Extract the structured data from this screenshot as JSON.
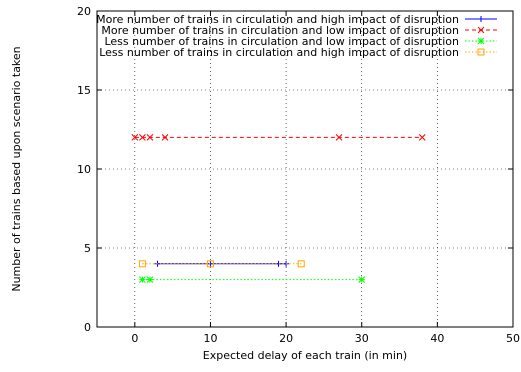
{
  "chart_data": {
    "type": "line",
    "title": "",
    "xlabel": "Expected delay of each train (in min)",
    "ylabel": "Number of trains based upon scenario taken",
    "xlim": [
      -5,
      50
    ],
    "ylim": [
      0,
      20
    ],
    "xticks": [
      0,
      10,
      20,
      30,
      40,
      50
    ],
    "yticks": [
      0,
      5,
      10,
      15,
      20
    ],
    "grid": true,
    "legend": "top-right",
    "series": [
      {
        "name": "More number of trains in circulation and high impact of disruption",
        "color": "#0000ff",
        "line_style": "solid",
        "marker": "plus",
        "points": [
          [
            3,
            4
          ],
          [
            10,
            4
          ],
          [
            19,
            4
          ],
          [
            20,
            4
          ]
        ]
      },
      {
        "name": "More number of trains in circulation and low impact of disruption",
        "color": "#ff0000",
        "line_style": "dashed",
        "marker": "cross",
        "points": [
          [
            0,
            12
          ],
          [
            1,
            12
          ],
          [
            2,
            12
          ],
          [
            4,
            12
          ],
          [
            27,
            12
          ],
          [
            38,
            12
          ]
        ]
      },
      {
        "name": "Less number of trains in circulation and low impact of disruption",
        "color": "#00ff00",
        "line_style": "dotted",
        "marker": "star",
        "points": [
          [
            1,
            3
          ],
          [
            2,
            3
          ],
          [
            30,
            3
          ]
        ]
      },
      {
        "name": "Less number of trains in circulation and high impact of disruption",
        "color": "#ffa500",
        "line_style": "dotted",
        "marker": "square",
        "points": [
          [
            1,
            4
          ],
          [
            10,
            4
          ],
          [
            22,
            4
          ]
        ]
      }
    ]
  }
}
